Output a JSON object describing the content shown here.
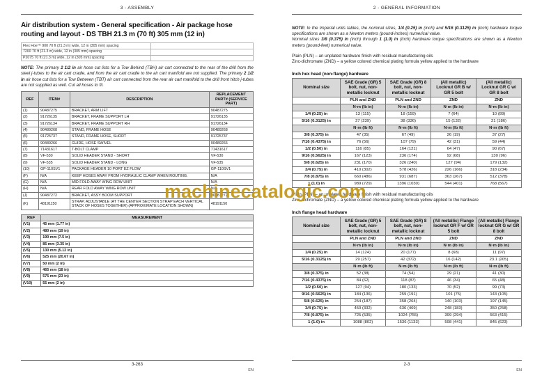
{
  "watermark": {
    "text": "machinecatalogic.com",
    "color": "#C49A1F"
  },
  "left_page": {
    "header": "3 - ASSEMBLY",
    "title": "Air distribution system - General specification - Air package hose routing and layout - DS TBH 21.3 m (70 ft) 305 mm (12 in)",
    "spec_rows": [
      "Flex Hoe™ 900 70 ft (21.3 m) wide, 12 in (305 mm) spacing",
      "7200 70 ft (21.3 m) wide, 12 in (305 mm) spacing",
      "P2075 70 ft (21.3 m) wide, 12 in (305 mm) spacing"
    ],
    "note": [
      "NOTE:",
      " The primary ",
      "2 1/2 in",
      " air hose cut lists for a Tow Behind (TBH) air cart connected to the rear of the drill from the steel j-tubes to the air cart cradle, and from the air cart cradle to the air cart manifold are not supplied.  The primary ",
      "2 1/2 in",
      " air hose cut lists for a Tow Between (TBT) air cart connected from the rear air cart manifold to the drill front hitch j-tubes are not supplied as well.  Cut all hoses to fit."
    ],
    "ref_table": {
      "headers": [
        "REF",
        "ITEM#",
        "DESCRIPTION",
        "REPLACEMENT PART# (SERVICE PART)"
      ],
      "rows": [
        [
          "(1)",
          "90487275",
          "BRACKET, ARM LIFT",
          "90487275"
        ],
        [
          "(2)",
          "91726135",
          "BRACKET, FRAME SUPPORT LH",
          "91726135"
        ],
        [
          "(3)",
          "91726134",
          "BRACKET, FRAME SUPPORT RH",
          "91726134"
        ],
        [
          "(4)",
          "90489268",
          "STAND, FRAME HOSE",
          "90489268"
        ],
        [
          "(5)",
          "91725737",
          "STAND, FRAME HOSE, SHORT",
          "91725737"
        ],
        [
          "(6)",
          "90489266",
          "GUIDE, HOSE SWIVEL",
          "90489266"
        ],
        [
          "(7)",
          "71431617",
          "T-BOLT CLAMP",
          "71431617"
        ],
        [
          "(8)",
          "VF-530",
          "SOLID HEADER STAND - SHORT",
          "VF-530"
        ],
        [
          "(9)",
          "VF-535",
          "SOLID HEADER STAND - LONG",
          "VF-535"
        ],
        [
          "(10)",
          "GP-110SV1",
          "PACKAGE HEADER 10 PORT EZ FLOW",
          "GP-110SV1"
        ],
        [
          "(F)",
          "N/A",
          "KEEP HOSES AWAY FROM HYDRAULIC CLAMP WHEN ROUTING.",
          "N/A"
        ],
        [
          "(G)",
          "N/A",
          "MID FOLD AWAY WING ROW UNIT",
          "N/A"
        ],
        [
          "(H)",
          "N/A",
          "REAR FOLD AWAY WING ROW UNIT",
          "N/A"
        ],
        [
          "(J)",
          "90487272",
          "BRACKET, ASSY BOOM SUPPORT",
          "90487272"
        ],
        [
          "(K)",
          "48191150",
          "STRAP, ADJUSTABLE (AT THE CENTER SECTION STRAP EACH VERTICAL STACK OF HOSES TOGETHER) (APPROXIMATE LOCATION SHOWN)",
          "48191150"
        ]
      ]
    },
    "measurement_table": {
      "headers": [
        "REF",
        "MEASUREMENT"
      ],
      "rows": [
        [
          "(V1)",
          "45 mm (1.77 in)"
        ],
        [
          "(V2)",
          "480 mm (19 in)"
        ],
        [
          "(V3)",
          "190 mm (7.5 in)"
        ],
        [
          "(V4)",
          "85 mm (3.35 in)"
        ],
        [
          "(V5)",
          "130 mm (5.12 in)"
        ],
        [
          "(V6)",
          "525 mm (20.67 in)"
        ],
        [
          "(V7)",
          "50 mm (2 in)"
        ],
        [
          "(V8)",
          "465 mm (18 in)"
        ],
        [
          "(V9)",
          "575 mm (23 in)"
        ],
        [
          "(V10)",
          "55 mm (2 in)"
        ]
      ]
    },
    "footer_page": "3-263",
    "footer_lang": "EN"
  },
  "right_page": {
    "header": "2 - GENERAL INFORMATION",
    "note_p1": [
      "NOTE:",
      " In the Imperial units tables, the nominal sizes, ",
      "1/4 (0.25) in",
      " (inch) and ",
      "5/16 (0.3125) in",
      " (inch) hardware torque specifications are shown as a Newton meters (pound-inches) numerical value."
    ],
    "note_p2": [
      "Nominal sizes ",
      "3/8 (0.375) in",
      " (inch) through ",
      "1 (1.0) in",
      " (inch) hardware torque specifications are shown as a Newton meters (pound-feet) numerical value."
    ],
    "finish_line1": "Plain (PLN) – an unplated hardware finish with residual manufacturing oils",
    "finish_line2": "Zinc-dichromate (ZND) – a yellow colored chemical plating formula yellow applied to the hardware",
    "table1": {
      "title": "Inch hex head (non-flange) hardware",
      "col_headers": [
        "Nominal size",
        "SAE Grade (GR) 5 bolt, nut, non-metallic locknut",
        "SAE Grade (GR) 8 bolt, nut, non-metallic locknut",
        "(All metallic) Locknut GR B w/ GR 5 bolt",
        "(All metallic) Locknut GR C w/ GR 8 bolt"
      ],
      "rows": [
        {
          "cls": "plnrow",
          "c": [
            "",
            "PLN and ZND",
            "PLN and ZND",
            "ZND",
            "ZND"
          ]
        },
        {
          "cls": "unit",
          "c": [
            "",
            "N·m (lb in)",
            "N·m (lb in)",
            "N·m (lb in)",
            "N·m (lb in)"
          ]
        },
        [
          "1/4 (0.25) in",
          "13 (115)",
          "18 (159)",
          "7 (64)",
          "10 (89)"
        ],
        [
          "5/16 (0.3125) in",
          "27 (239)",
          "38 (336)",
          "15 (132)",
          "21 (186)"
        ],
        {
          "cls": "unit",
          "c": [
            "",
            "N·m (lb ft)",
            "N·m (lb ft)",
            "N·m (lb ft)",
            "N·m (lb ft)"
          ]
        },
        [
          "3/8 (0.375) in",
          "47 (35)",
          "67 (49)",
          "26 (19)",
          "37 (27)"
        ],
        [
          "7/16 (0.4375) in",
          "76 (56)",
          "107 (79)",
          "42 (31)",
          "59 (44)"
        ],
        [
          "1/2 (0.50) in",
          "116 (85)",
          "164 (121)",
          "64 (47)",
          "90 (67)"
        ],
        [
          "9/16 (0.5625) in",
          "167 (123)",
          "236 (174)",
          "92 (68)",
          "130 (96)"
        ],
        [
          "5/8 (0.625) in",
          "231 (170)",
          "326 (240)",
          "127 (94)",
          "179 (132)"
        ],
        [
          "3/4 (0.75) in",
          "410 (302)",
          "578 (426)",
          "226 (166)",
          "318 (234)"
        ],
        [
          "7/8 (0.875) in",
          "660 (486)",
          "931 (687)",
          "363 (267)",
          "512 (378)"
        ],
        [
          "1 (1.0) in",
          "989 (729)",
          "1396 (1030)",
          "544 (401)",
          "768 (567)"
        ]
      ]
    },
    "table2": {
      "title": "Inch flange head hardware",
      "col_headers": [
        "Nominal size",
        "SAE Grade (GR) 5 bolt, nut, non-metallic locknut",
        "SAE Grade (GR) 8 bolt, nut, non-metallic locknut",
        "(All metallic) Flange locknut GR F w/ GR 5 bolt",
        "(All metallic) Flange locknut GR G w/ GR 8 bolt"
      ],
      "rows": [
        {
          "cls": "plnrow",
          "c": [
            "",
            "PLN and ZND",
            "PLN and ZND",
            "ZND",
            "ZND"
          ]
        },
        {
          "cls": "unit",
          "c": [
            "",
            "N·m (lb in)",
            "N·m (lb in)",
            "N·m (lb in)",
            "N·m (lb in)"
          ]
        },
        [
          "1/4 (0.25) in",
          "14 (124)",
          "20 (177)",
          "8 (68)",
          "11 (97)"
        ],
        [
          "5/16 (0.3125) in",
          "29 (257)",
          "42 (372)",
          "16 (142)",
          "23.1 (205)"
        ],
        {
          "cls": "unit",
          "c": [
            "",
            "N·m (lb ft)",
            "N·m (lb ft)",
            "N·m (lb ft)",
            "N·m (lb ft)"
          ]
        },
        [
          "3/8 (0.375) in",
          "52 (38)",
          "74 (54)",
          "29 (21)",
          "41 (30)"
        ],
        [
          "7/16 (0.4375) in",
          "84 (62)",
          "118 (87)",
          "46 (34)",
          "65 (48)"
        ],
        [
          "1/2 (0.50) in",
          "127 (94)",
          "180 (133)",
          "70 (52)",
          "99 (73)"
        ],
        [
          "9/16 (0.5625) in",
          "184 (136)",
          "259 (191)",
          "101 (75)",
          "143 (105)"
        ],
        [
          "5/8 (0.625) in",
          "254 (187)",
          "358 (264)",
          "140 (103)",
          "197 (145)"
        ],
        [
          "3/4 (0.75) in",
          "450 (332)",
          "636 (469)",
          "248 (183)",
          "350 (258)"
        ],
        [
          "7/8 (0.875) in",
          "725 (535)",
          "1024 (755)",
          "399 (294)",
          "563 (415)"
        ],
        [
          "1 (1.0) in",
          "1088 (802)",
          "1536 (1133)",
          "598 (441)",
          "845 (623)"
        ]
      ]
    },
    "footer_page": "2-3",
    "footer_lang": "EN"
  }
}
